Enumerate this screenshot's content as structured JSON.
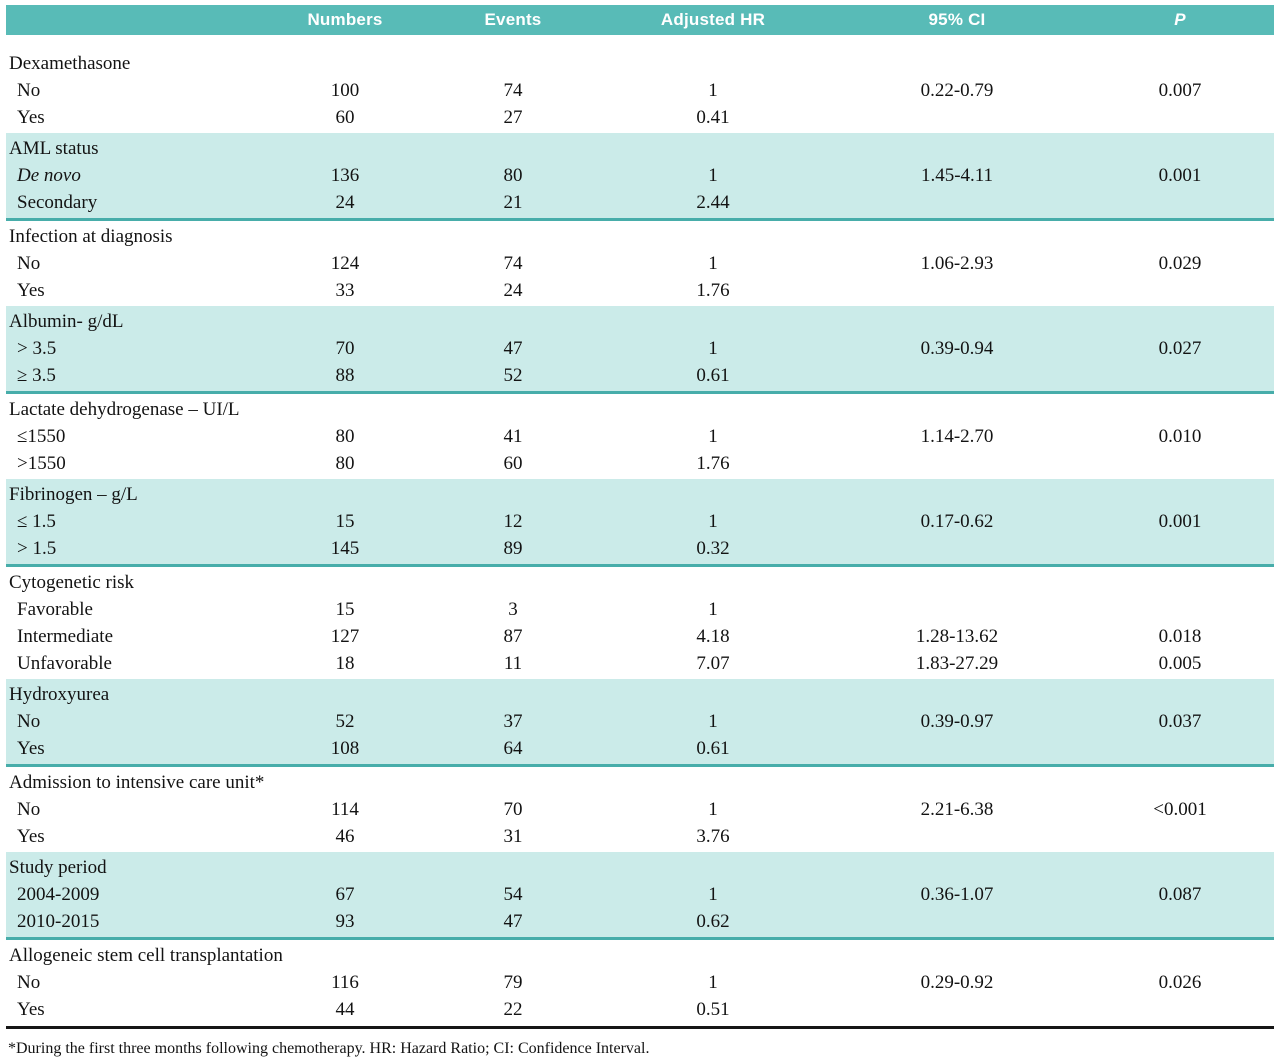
{
  "table": {
    "columns": [
      "Numbers",
      "Events",
      "Adjusted HR",
      "95% CI",
      "P"
    ],
    "sections": [
      {
        "label": "Dexamethasone",
        "shaded": false,
        "rows": [
          {
            "label": "No",
            "numbers": "100",
            "events": "74",
            "hr": "1",
            "ci": "0.22-0.79",
            "p": "0.007"
          },
          {
            "label": "Yes",
            "numbers": "60",
            "events": "27",
            "hr": "0.41",
            "ci": "",
            "p": ""
          }
        ]
      },
      {
        "label": "AML status",
        "shaded": true,
        "rows": [
          {
            "label": "De novo",
            "italic": true,
            "numbers": "136",
            "events": "80",
            "hr": "1",
            "ci": "1.45-4.11",
            "p": "0.001"
          },
          {
            "label": "Secondary",
            "numbers": "24",
            "events": "21",
            "hr": "2.44",
            "ci": "",
            "p": ""
          }
        ]
      },
      {
        "label": "Infection at diagnosis",
        "shaded": false,
        "rows": [
          {
            "label": "No",
            "numbers": "124",
            "events": "74",
            "hr": "1",
            "ci": "1.06-2.93",
            "p": "0.029"
          },
          {
            "label": "Yes",
            "numbers": "33",
            "events": "24",
            "hr": "1.76",
            "ci": "",
            "p": ""
          }
        ]
      },
      {
        "label": "Albumin- g/dL",
        "shaded": true,
        "rows": [
          {
            "label": "> 3.5",
            "numbers": "70",
            "events": "47",
            "hr": "1",
            "ci": "0.39-0.94",
            "p": "0.027"
          },
          {
            "label": "≥ 3.5",
            "numbers": "88",
            "events": "52",
            "hr": "0.61",
            "ci": "",
            "p": ""
          }
        ]
      },
      {
        "label": "Lactate dehydrogenase – UI/L",
        "shaded": false,
        "rows": [
          {
            "label": "≤1550",
            "numbers": "80",
            "events": "41",
            "hr": "1",
            "ci": "1.14-2.70",
            "p": "0.010"
          },
          {
            "label": ">1550",
            "numbers": "80",
            "events": "60",
            "hr": "1.76",
            "ci": "",
            "p": ""
          }
        ]
      },
      {
        "label": "Fibrinogen – g/L",
        "shaded": true,
        "rows": [
          {
            "label": "≤ 1.5",
            "numbers": "15",
            "events": "12",
            "hr": "1",
            "ci": "0.17-0.62",
            "p": "0.001"
          },
          {
            "label": "> 1.5",
            "numbers": "145",
            "events": "89",
            "hr": "0.32",
            "ci": "",
            "p": ""
          }
        ]
      },
      {
        "label": "Cytogenetic risk",
        "shaded": false,
        "rows": [
          {
            "label": "Favorable",
            "numbers": "15",
            "events": "3",
            "hr": "1",
            "ci": "",
            "p": ""
          },
          {
            "label": "Intermediate",
            "numbers": "127",
            "events": "87",
            "hr": "4.18",
            "ci": "1.28-13.62",
            "p": "0.018"
          },
          {
            "label": "Unfavorable",
            "numbers": "18",
            "events": "11",
            "hr": "7.07",
            "ci": "1.83-27.29",
            "p": "0.005"
          }
        ]
      },
      {
        "label": "Hydroxyurea",
        "shaded": true,
        "rows": [
          {
            "label": "No",
            "numbers": "52",
            "events": "37",
            "hr": "1",
            "ci": "0.39-0.97",
            "p": "0.037"
          },
          {
            "label": "Yes",
            "numbers": "108",
            "events": "64",
            "hr": "0.61",
            "ci": "",
            "p": ""
          }
        ]
      },
      {
        "label": "Admission to intensive care unit*",
        "shaded": false,
        "rows": [
          {
            "label": "No",
            "numbers": "114",
            "events": "70",
            "hr": "1",
            "ci": "2.21-6.38",
            "p": "<0.001"
          },
          {
            "label": "Yes",
            "numbers": "46",
            "events": "31",
            "hr": "3.76",
            "ci": "",
            "p": ""
          }
        ]
      },
      {
        "label": "Study period",
        "shaded": true,
        "rows": [
          {
            "label": "2004-2009",
            "numbers": "67",
            "events": "54",
            "hr": "1",
            "ci": "0.36-1.07",
            "p": "0.087"
          },
          {
            "label": "2010-2015",
            "numbers": "93",
            "events": "47",
            "hr": "0.62",
            "ci": "",
            "p": ""
          }
        ]
      },
      {
        "label": "Allogeneic stem cell transplantation",
        "shaded": false,
        "rows": [
          {
            "label": "No",
            "numbers": "116",
            "events": "79",
            "hr": "1",
            "ci": "0.29-0.92",
            "p": "0.026"
          },
          {
            "label": "Yes",
            "numbers": "44",
            "events": "22",
            "hr": "0.51",
            "ci": "",
            "p": ""
          }
        ]
      }
    ],
    "footnote": "*During the first three months following chemotherapy. HR: Hazard Ratio; CI: Confidence Interval."
  },
  "colors": {
    "header_bg": "#58bbb7",
    "band_bg": "#cbebe9",
    "band_border": "#47adaa",
    "text": "#131313"
  }
}
